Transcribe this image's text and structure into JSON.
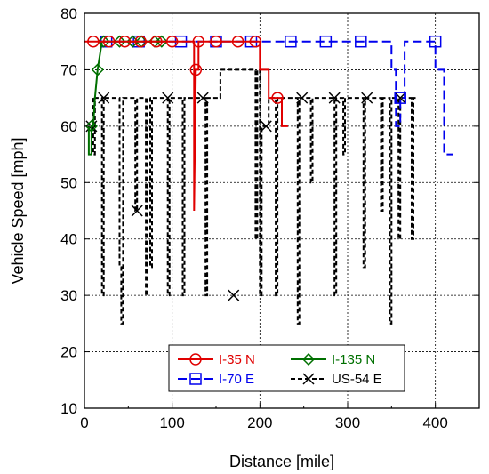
{
  "chart_data": {
    "type": "line",
    "xlabel": "Distance [mile]",
    "ylabel": "Vehicle Speed [mph]",
    "xlim": [
      0,
      450
    ],
    "ylim": [
      10,
      80
    ],
    "xticks": [
      0,
      100,
      200,
      300,
      400
    ],
    "yticks": [
      10,
      20,
      30,
      40,
      50,
      60,
      70,
      80
    ],
    "grid": true,
    "legend_position": "bottom-center",
    "series": [
      {
        "name": "I-35 N",
        "color": "#e00000",
        "dash": "",
        "marker": "circle",
        "points": [
          [
            0,
            75
          ],
          [
            125,
            75
          ],
          [
            125,
            45
          ],
          [
            127,
            70
          ],
          [
            130,
            70
          ],
          [
            130,
            75
          ],
          [
            200,
            75
          ],
          [
            200,
            70
          ],
          [
            210,
            70
          ],
          [
            210,
            65
          ],
          [
            225,
            65
          ],
          [
            225,
            60
          ],
          [
            232,
            60
          ]
        ],
        "marker_points": [
          [
            10,
            75
          ],
          [
            28,
            75
          ],
          [
            46,
            75
          ],
          [
            64,
            75
          ],
          [
            82,
            75
          ],
          [
            100,
            75
          ],
          [
            127,
            70
          ],
          [
            130,
            75
          ],
          [
            150,
            75
          ],
          [
            175,
            75
          ],
          [
            195,
            75
          ],
          [
            220,
            65
          ]
        ]
      },
      {
        "name": "I-135 N",
        "color": "#007000",
        "dash": "",
        "marker": "diamond",
        "points": [
          [
            5,
            60
          ],
          [
            5,
            55
          ],
          [
            8,
            55
          ],
          [
            8,
            60
          ],
          [
            10,
            60
          ],
          [
            12,
            65
          ],
          [
            15,
            70
          ],
          [
            20,
            75
          ],
          [
            90,
            75
          ]
        ],
        "marker_points": [
          [
            8,
            60
          ],
          [
            15,
            70
          ],
          [
            22,
            75
          ],
          [
            40,
            75
          ],
          [
            55,
            75
          ],
          [
            65,
            75
          ],
          [
            80,
            75
          ],
          [
            88,
            75
          ]
        ]
      },
      {
        "name": "I-70 E",
        "color": "#0000ee",
        "dash": "10,5",
        "marker": "square",
        "points": [
          [
            20,
            75
          ],
          [
            350,
            75
          ],
          [
            350,
            70
          ],
          [
            355,
            70
          ],
          [
            355,
            60
          ],
          [
            360,
            60
          ],
          [
            360,
            65
          ],
          [
            365,
            65
          ],
          [
            365,
            75
          ],
          [
            400,
            75
          ],
          [
            400,
            70
          ],
          [
            410,
            70
          ],
          [
            410,
            55
          ],
          [
            420,
            55
          ]
        ],
        "marker_points": [
          [
            25,
            75
          ],
          [
            62,
            75
          ],
          [
            110,
            75
          ],
          [
            150,
            75
          ],
          [
            190,
            75
          ],
          [
            235,
            75
          ],
          [
            275,
            75
          ],
          [
            315,
            75
          ],
          [
            360,
            65
          ],
          [
            400,
            75
          ]
        ]
      },
      {
        "name": "US-54 E",
        "color": "#000000",
        "dash": "5,3",
        "marker": "x",
        "points": [
          [
            10,
            65
          ],
          [
            10,
            55
          ],
          [
            12,
            55
          ],
          [
            12,
            65
          ],
          [
            20,
            65
          ],
          [
            20,
            30
          ],
          [
            22,
            30
          ],
          [
            22,
            65
          ],
          [
            40,
            65
          ],
          [
            40,
            35
          ],
          [
            42,
            35
          ],
          [
            42,
            25
          ],
          [
            44,
            25
          ],
          [
            44,
            65
          ],
          [
            58,
            65
          ],
          [
            58,
            45
          ],
          [
            60,
            45
          ],
          [
            60,
            65
          ],
          [
            70,
            65
          ],
          [
            70,
            30
          ],
          [
            72,
            30
          ],
          [
            72,
            65
          ],
          [
            75,
            65
          ],
          [
            75,
            35
          ],
          [
            77,
            35
          ],
          [
            77,
            65
          ],
          [
            95,
            65
          ],
          [
            95,
            30
          ],
          [
            97,
            30
          ],
          [
            97,
            65
          ],
          [
            112,
            65
          ],
          [
            112,
            30
          ],
          [
            114,
            30
          ],
          [
            114,
            65
          ],
          [
            138,
            65
          ],
          [
            138,
            30
          ],
          [
            140,
            30
          ],
          [
            140,
            65
          ],
          [
            155,
            65
          ],
          [
            155,
            70
          ],
          [
            195,
            70
          ],
          [
            195,
            40
          ],
          [
            197,
            40
          ],
          [
            197,
            70
          ],
          [
            200,
            70
          ],
          [
            200,
            30
          ],
          [
            202,
            30
          ],
          [
            202,
            60
          ],
          [
            210,
            60
          ],
          [
            210,
            65
          ],
          [
            218,
            65
          ],
          [
            218,
            30
          ],
          [
            220,
            30
          ],
          [
            220,
            65
          ],
          [
            243,
            65
          ],
          [
            243,
            25
          ],
          [
            245,
            25
          ],
          [
            245,
            65
          ],
          [
            258,
            65
          ],
          [
            258,
            50
          ],
          [
            260,
            50
          ],
          [
            260,
            65
          ],
          [
            285,
            65
          ],
          [
            285,
            30
          ],
          [
            287,
            30
          ],
          [
            287,
            65
          ],
          [
            295,
            65
          ],
          [
            295,
            55
          ],
          [
            297,
            55
          ],
          [
            297,
            65
          ],
          [
            318,
            65
          ],
          [
            318,
            35
          ],
          [
            320,
            35
          ],
          [
            320,
            65
          ],
          [
            338,
            65
          ],
          [
            338,
            45
          ],
          [
            340,
            45
          ],
          [
            340,
            65
          ],
          [
            348,
            65
          ],
          [
            348,
            25
          ],
          [
            350,
            25
          ],
          [
            350,
            65
          ],
          [
            358,
            65
          ],
          [
            358,
            40
          ],
          [
            360,
            40
          ],
          [
            360,
            65
          ],
          [
            373,
            65
          ],
          [
            373,
            40
          ],
          [
            375,
            40
          ],
          [
            375,
            65
          ],
          [
            380,
            65
          ]
        ],
        "marker_points": [
          [
            8,
            60
          ],
          [
            22,
            65
          ],
          [
            60,
            45
          ],
          [
            95,
            65
          ],
          [
            135,
            65
          ],
          [
            170,
            30
          ],
          [
            207,
            60
          ],
          [
            248,
            65
          ],
          [
            285,
            65
          ],
          [
            322,
            65
          ],
          [
            360,
            65
          ]
        ]
      }
    ],
    "legend": [
      {
        "label": "I-35 N",
        "series": 0
      },
      {
        "label": "I-135 N",
        "series": 1
      },
      {
        "label": "I-70 E",
        "series": 2
      },
      {
        "label": "US-54 E",
        "series": 3
      }
    ]
  }
}
